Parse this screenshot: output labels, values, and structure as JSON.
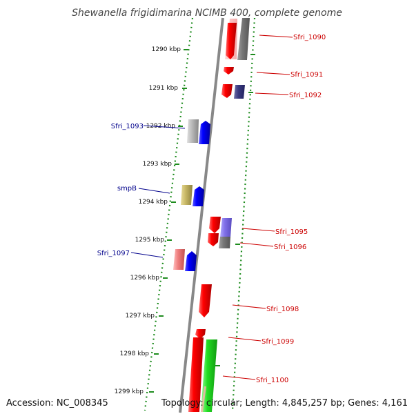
{
  "title": "Shewanella frigidimarina NCIMB 400, complete genome",
  "accession": "Accession: NC_008345",
  "topology": "Topology: circular; Length: 4,845,257 bp; Genes: 4,161",
  "colors": {
    "backbone": "#888888",
    "dotted_track": "#1e8c1e",
    "label_red": "#cc0000",
    "label_blue": "#00008b"
  },
  "ticks": [
    {
      "label": "1290 kbp",
      "kbp": 1290
    },
    {
      "label": "1291 kbp",
      "kbp": 1291
    },
    {
      "label": "1292 kbp",
      "kbp": 1292
    },
    {
      "label": "1293 kbp",
      "kbp": 1293
    },
    {
      "label": "1294 kbp",
      "kbp": 1294
    },
    {
      "label": "1295 kbp",
      "kbp": 1295
    },
    {
      "label": "1296 kbp",
      "kbp": 1296
    },
    {
      "label": "1297 kbp",
      "kbp": 1297
    },
    {
      "label": "1298 kbp",
      "kbp": 1298
    },
    {
      "label": "1299 kbp",
      "kbp": 1299
    }
  ],
  "gene_labels": [
    {
      "text": "Sfri_1090",
      "color": "#cc0000"
    },
    {
      "text": "Sfri_1091",
      "color": "#cc0000"
    },
    {
      "text": "Sfri_1092",
      "color": "#cc0000"
    },
    {
      "text": "Sfri_1093",
      "color": "#00008b"
    },
    {
      "text": "smpB",
      "color": "#00008b"
    },
    {
      "text": "Sfri_1095",
      "color": "#cc0000"
    },
    {
      "text": "Sfri_1096",
      "color": "#cc0000"
    },
    {
      "text": "Sfri_1097",
      "color": "#00008b"
    },
    {
      "text": "Sfri_1098",
      "color": "#cc0000"
    },
    {
      "text": "Sfri_1099",
      "color": "#cc0000"
    },
    {
      "text": "Sfri_1100",
      "color": "#cc0000"
    }
  ]
}
